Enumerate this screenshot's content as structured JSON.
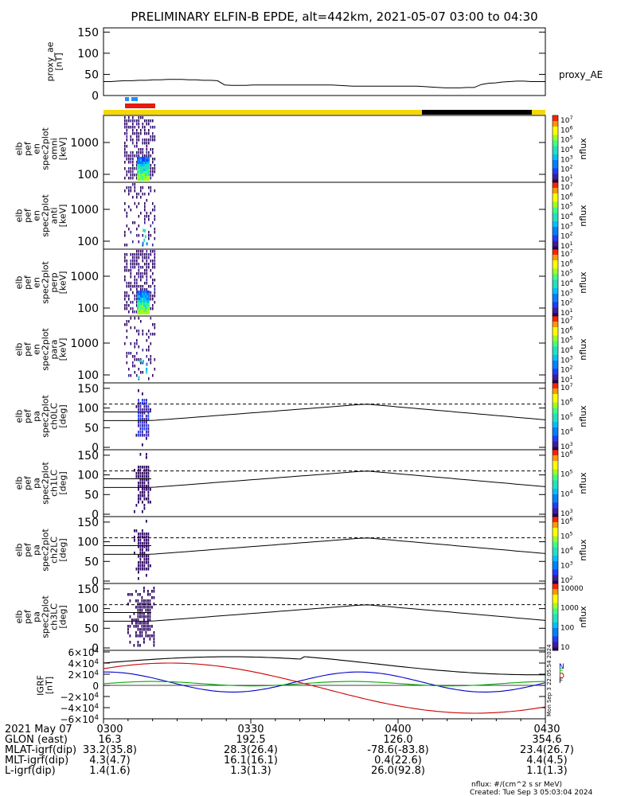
{
  "title": "PRELIMINARY ELFIN-B EPDE, alt=442km, 2021-05-07 03:00 to 04:30",
  "proxy_panel": {
    "ylabel": "proxy_ae\n[nT]",
    "ticks": [
      "150",
      "100",
      "50",
      "0"
    ],
    "series_label": "proxy_AE",
    "values": [
      33,
      33,
      34,
      35,
      35,
      36,
      36,
      37,
      37,
      38,
      38,
      38,
      37,
      37,
      36,
      36,
      35,
      25,
      24,
      24,
      24,
      25,
      25,
      25,
      25,
      25,
      25,
      25,
      25,
      25,
      25,
      25,
      25,
      24,
      23,
      22,
      22,
      22,
      22,
      22,
      22,
      22,
      22,
      22,
      22,
      21,
      20,
      19,
      18,
      18,
      18,
      19,
      19,
      26,
      29,
      30,
      32,
      33,
      34,
      34,
      33,
      33,
      33
    ]
  },
  "spec_panels": [
    {
      "ylabel": "elb\npef\nen\nspec2plot\nomni\n[keV]",
      "ticks": [
        "1000",
        "100"
      ],
      "cbar_ticks": [
        "10^7",
        "10^6",
        "10^5",
        "10^4",
        "10^3",
        "10^2",
        "10^1"
      ],
      "cbar_label": "nflux"
    },
    {
      "ylabel": "elb\npef\nen\nspec2plot\nanti\n[keV]",
      "ticks": [
        "1000",
        "100"
      ],
      "cbar_ticks": [
        "10^7",
        "10^6",
        "10^5",
        "10^4",
        "10^3",
        "10^2",
        "10^1"
      ],
      "cbar_label": "nflux"
    },
    {
      "ylabel": "elb\npef\nen\nspec2plot\nperp\n[keV]",
      "ticks": [
        "1000",
        "100"
      ],
      "cbar_ticks": [
        "10^7",
        "10^6",
        "10^5",
        "10^4",
        "10^3",
        "10^2",
        "10^1"
      ],
      "cbar_label": "nflux"
    },
    {
      "ylabel": "elb\npef\nen\nspec2plot\npara\n[keV]",
      "ticks": [
        "1000",
        "100"
      ],
      "cbar_ticks": [
        "10^7",
        "10^6",
        "10^5",
        "10^4",
        "10^3",
        "10^2",
        "10^1"
      ],
      "cbar_label": "nflux"
    }
  ],
  "pa_panels": [
    {
      "ylabel": "elb\npef\npa\nspec2plot\nch0LC\n[deg]",
      "ticks": [
        "150",
        "100",
        "50",
        "0"
      ],
      "cbar_ticks": [
        "10^7",
        "10^6",
        "10^5",
        "10^4",
        "10^3"
      ],
      "cbar_label": "nflux"
    },
    {
      "ylabel": "elb\npef\npa\nspec2plot\nch1LC\n[deg]",
      "ticks": [
        "150",
        "100",
        "50",
        "0"
      ],
      "cbar_ticks": [
        "10^6",
        "10^5",
        "10^4",
        "10^3"
      ],
      "cbar_label": "nflux"
    },
    {
      "ylabel": "elb\npef\npa\nspec2plot\nch2LC\n[deg]",
      "ticks": [
        "150",
        "100",
        "50",
        "0"
      ],
      "cbar_ticks": [
        "10^6",
        "10^5",
        "10^4",
        "10^3",
        "10^2"
      ],
      "cbar_label": "nflux"
    },
    {
      "ylabel": "elb\npef\npa\nspec2plot\nch3LC\n[deg]",
      "ticks": [
        "150",
        "100",
        "50",
        "0"
      ],
      "cbar_ticks": [
        "10000",
        "1000",
        "100",
        "10"
      ],
      "cbar_label": "nflux"
    }
  ],
  "igrf_panel": {
    "ylabel": "IGRF\n[nT]",
    "ticks": [
      "6×10^4",
      "4×10^4",
      "2×10^4",
      "0",
      "−2×10^4",
      "−4×10^4",
      "−6×10^4"
    ],
    "legend": [
      "N",
      "E",
      "D",
      "F"
    ],
    "stamp": "Mon Sep  3 22:05:54 2024"
  },
  "bottom_axis": {
    "rows": [
      {
        "label": "2021 May 07",
        "values": [
          "0300",
          "0330",
          "0400",
          "0430"
        ]
      },
      {
        "label": "GLON (east)",
        "values": [
          "16.3",
          "192.5",
          "126.0",
          "354.6"
        ]
      },
      {
        "label": "MLAT-igrf(dip)",
        "values": [
          "33.2(35.8)",
          "28.3(26.4)",
          "-78.6(-83.8)",
          "23.4(26.7)"
        ]
      },
      {
        "label": "MLT-igrf(dip)",
        "values": [
          "4.3(4.7)",
          "16.1(16.1)",
          "0.4(22.6)",
          "4.4(4.5)"
        ]
      },
      {
        "label": "L-igrf(dip)",
        "values": [
          "1.4(1.6)",
          "1.3(1.3)",
          "26.0(92.8)",
          "1.1(1.3)"
        ]
      }
    ]
  },
  "footer": {
    "units": "nflux: #/(cm^2 s sr MeV)",
    "created": "Created: Tue Sep  3 05:03:04 2024"
  },
  "colors": {
    "yellow_bar": "#f5d800",
    "black_bar": "#000000",
    "red_bar": "#e8190e",
    "blue_marks": "#1e90ff",
    "igrf_black": "#000000",
    "igrf_red": "#cc0000",
    "igrf_blue": "#0000cc",
    "igrf_green": "#00aa00"
  },
  "chart_data": {
    "type": "line",
    "x_range": [
      "03:00",
      "04:30"
    ],
    "series": [
      {
        "name": "proxy_AE",
        "values": [
          33,
          33,
          34,
          35,
          35,
          36,
          36,
          37,
          37,
          38,
          38,
          38,
          37,
          37,
          36,
          36,
          35,
          25,
          24,
          24,
          24,
          25,
          25,
          25,
          25,
          25,
          25,
          25,
          25,
          25,
          25,
          25,
          25,
          24,
          23,
          22,
          22,
          22,
          22,
          22,
          22,
          22,
          22,
          22,
          22,
          21,
          20,
          19,
          18,
          18,
          18,
          19,
          19,
          26,
          29,
          30,
          32,
          33,
          34,
          34,
          33,
          33,
          33
        ]
      }
    ],
    "ylim": [
      0,
      160
    ]
  }
}
